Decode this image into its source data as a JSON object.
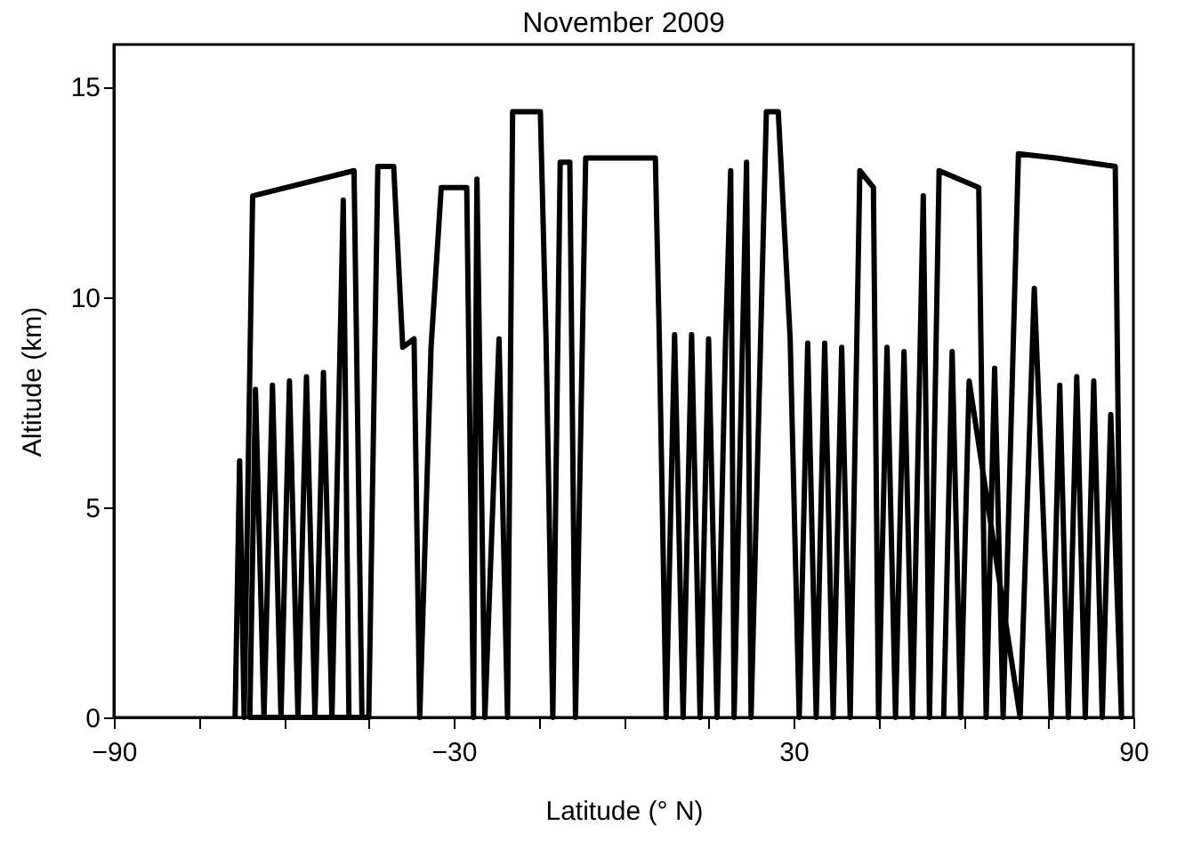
{
  "chart_data": {
    "type": "line",
    "title": "November 2009",
    "xlabel": "Latitude (° N)",
    "ylabel": "Altitude (km)",
    "xlim": [
      -90,
      90
    ],
    "ylim": [
      0,
      16
    ],
    "xticks": [
      -90,
      {
        "value": -75,
        "label": null
      },
      {
        "value": -60,
        "label": null
      },
      -30,
      {
        "value": -45,
        "label": null
      },
      {
        "value": -15,
        "label": null
      },
      {
        "value": 0,
        "label": null
      },
      {
        "value": 15,
        "label": null
      },
      30,
      {
        "value": 45,
        "label": null
      },
      {
        "value": 60,
        "label": null
      },
      {
        "value": 75,
        "label": null
      },
      90
    ],
    "yticks": [
      0,
      5,
      10,
      15
    ],
    "grid": false,
    "marker": "none",
    "line_style": "solid",
    "series": [
      {
        "color": "#000000",
        "x": [
          -68.6,
          -67.8,
          -67,
          -65.5,
          -47.6,
          -46.2,
          -66,
          -65,
          -63.5,
          -62,
          -60.5,
          -59,
          -57.5,
          -56,
          -54.5,
          -53,
          -51.5,
          -49.5,
          -48.5,
          -45,
          -43.4,
          -40.6,
          -39,
          -37,
          -36,
          -34,
          -32.2,
          -27.7,
          -26.5,
          -25.9,
          -24.5,
          -22,
          -20.5,
          -19.6,
          -14.7,
          -13.7,
          -12.5,
          -11.2,
          -9.5,
          -8.5,
          -6.7,
          5.6,
          6.3,
          7.5,
          9,
          10.5,
          12,
          13.5,
          15,
          16.5,
          18,
          18.9,
          19.5,
          21.7,
          22.5,
          25.2,
          27.3,
          29.4,
          31,
          32.5,
          34,
          35.5,
          37,
          38.5,
          40,
          41.7,
          44.1,
          45,
          46.5,
          48,
          49.5,
          51,
          52.9,
          54,
          55.7,
          62.7,
          64,
          65.5,
          67,
          69.7,
          76.3,
          86.8,
          87.9,
          86,
          84.5,
          83,
          81.5,
          80,
          78.5,
          77,
          75.5,
          72.5,
          70,
          61,
          59.5,
          58,
          56.5
        ],
        "values": [
          0,
          6.1,
          0,
          12.4,
          13.0,
          0,
          0,
          7.8,
          0,
          7.9,
          0,
          8.0,
          0,
          8.1,
          0,
          8.2,
          0,
          12.3,
          0,
          0,
          13.1,
          13.1,
          8.8,
          9.0,
          0,
          8.8,
          12.6,
          12.6,
          0,
          12.8,
          0,
          9.0,
          0,
          14.4,
          14.4,
          9.0,
          0,
          13.2,
          13.2,
          0,
          13.3,
          13.3,
          9.0,
          0,
          9.1,
          0,
          9.1,
          0,
          9.0,
          0,
          9.0,
          13.0,
          0,
          13.2,
          0,
          14.4,
          14.4,
          9.0,
          0,
          8.9,
          0,
          8.9,
          0,
          8.8,
          0,
          13.0,
          12.6,
          0,
          8.8,
          0,
          8.7,
          0,
          12.4,
          0,
          13.0,
          12.6,
          0,
          8.3,
          0,
          13.4,
          13.3,
          13.1,
          0,
          7.2,
          0,
          8.0,
          0,
          8.1,
          0,
          7.9,
          0,
          10.2,
          0,
          8.0,
          0,
          8.7,
          0
        ]
      }
    ]
  }
}
